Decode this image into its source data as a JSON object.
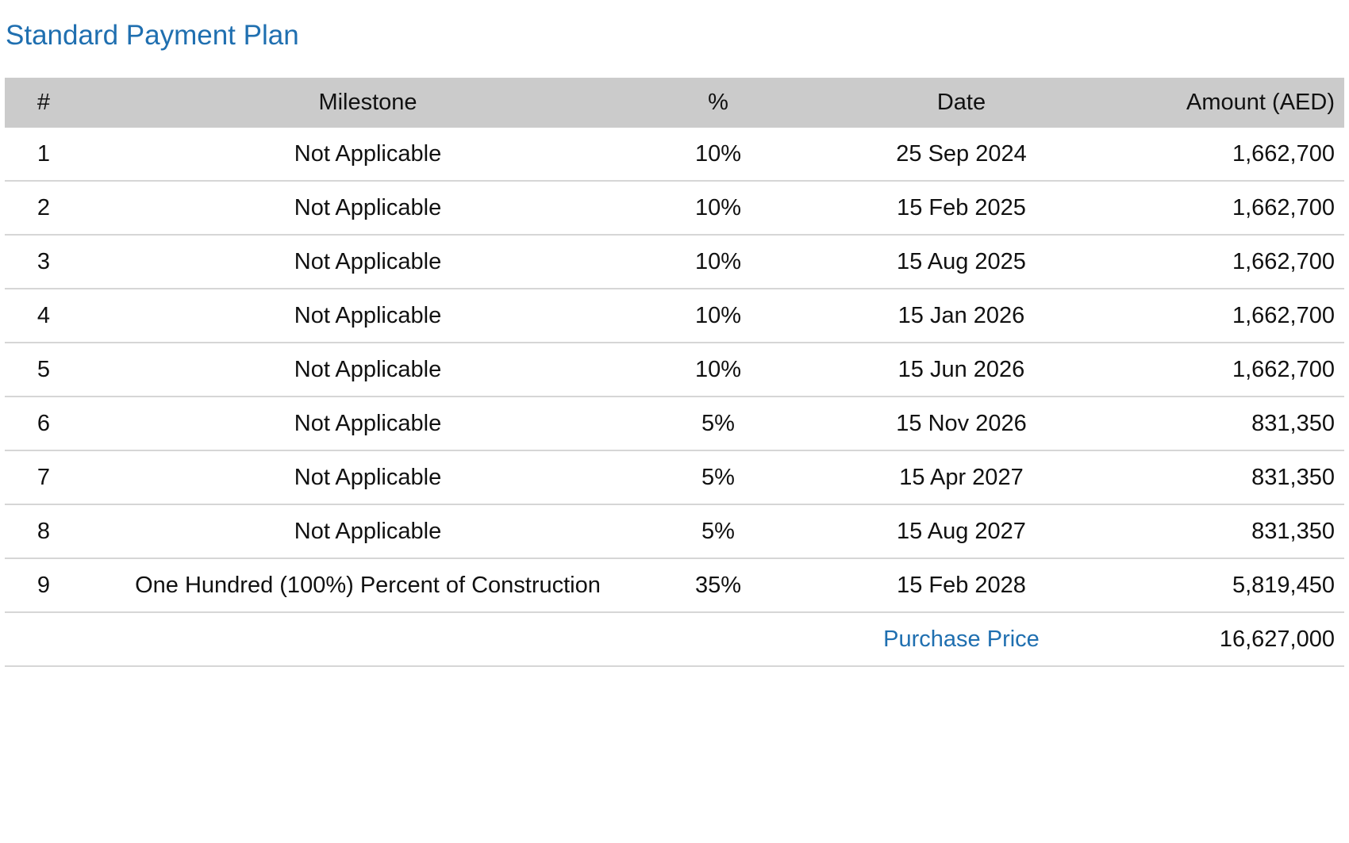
{
  "title": "Standard Payment Plan",
  "columns": {
    "num": "#",
    "milestone": "Milestone",
    "percent": "%",
    "date": "Date",
    "amount": "Amount (AED)"
  },
  "rows": [
    {
      "num": "1",
      "milestone": "Not Applicable",
      "percent": "10%",
      "date": "25 Sep 2024",
      "amount": "1,662,700"
    },
    {
      "num": "2",
      "milestone": "Not Applicable",
      "percent": "10%",
      "date": "15 Feb 2025",
      "amount": "1,662,700"
    },
    {
      "num": "3",
      "milestone": "Not Applicable",
      "percent": "10%",
      "date": "15 Aug 2025",
      "amount": "1,662,700"
    },
    {
      "num": "4",
      "milestone": "Not Applicable",
      "percent": "10%",
      "date": "15 Jan 2026",
      "amount": "1,662,700"
    },
    {
      "num": "5",
      "milestone": "Not Applicable",
      "percent": "10%",
      "date": "15 Jun 2026",
      "amount": "1,662,700"
    },
    {
      "num": "6",
      "milestone": "Not Applicable",
      "percent": "5%",
      "date": "15 Nov 2026",
      "amount": "831,350"
    },
    {
      "num": "7",
      "milestone": "Not Applicable",
      "percent": "5%",
      "date": "15 Apr 2027",
      "amount": "831,350"
    },
    {
      "num": "8",
      "milestone": "Not Applicable",
      "percent": "5%",
      "date": "15 Aug 2027",
      "amount": "831,350"
    },
    {
      "num": "9",
      "milestone": "One Hundred (100%) Percent of Construction",
      "percent": "35%",
      "date": "15 Feb 2028",
      "amount": "5,819,450"
    }
  ],
  "total": {
    "label": "Purchase Price",
    "amount": "16,627,000"
  },
  "colors": {
    "accent": "#1f6fb0",
    "header_bg": "#cbcbcb",
    "row_divider": "#d6d6d6"
  }
}
